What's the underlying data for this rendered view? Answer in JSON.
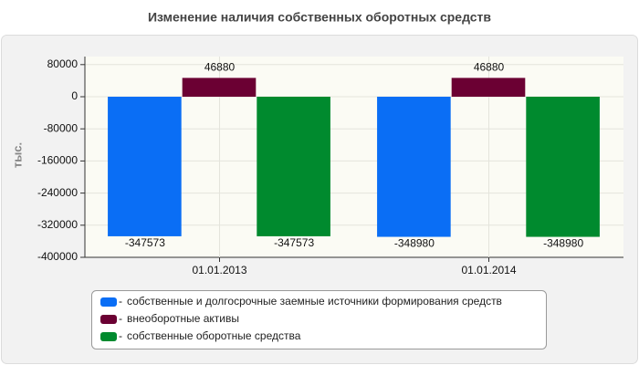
{
  "chart_data": {
    "type": "bar",
    "title": "Изменение наличия собственных оборотных средств",
    "y_label": "тыс.",
    "categories": [
      "01.01.2013",
      "01.01.2014"
    ],
    "series": [
      {
        "name": "собственные и долгосрочные заемные источники формирования средств",
        "color": "#0a6ef5",
        "values": [
          -347573,
          -348980
        ]
      },
      {
        "name": "внеоборотные активы",
        "color": "#6b0033",
        "values": [
          46880,
          46880
        ]
      },
      {
        "name": "собственные оборотные средства",
        "color": "#008a2e",
        "values": [
          -347573,
          -348980
        ]
      }
    ],
    "ylim": [
      -400000,
      100000
    ],
    "yticks": [
      80000,
      0,
      -80000,
      -160000,
      -240000,
      -320000,
      -400000
    ],
    "grid": true
  }
}
